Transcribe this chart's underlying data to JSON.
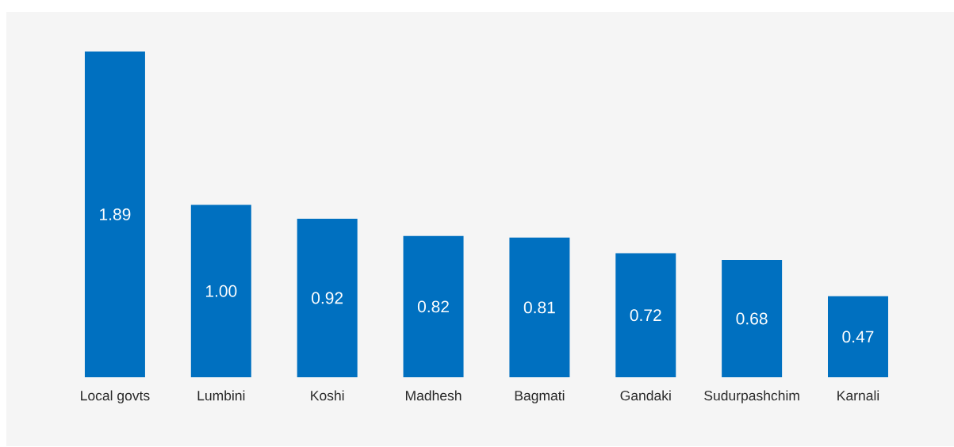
{
  "chart_data": {
    "type": "bar",
    "categories": [
      "Local govts",
      "Lumbini",
      "Koshi",
      "Madhesh",
      "Bagmati",
      "Gandaki",
      "Sudurpashchim",
      "Karnali"
    ],
    "values": [
      1.89,
      1.0,
      0.92,
      0.82,
      0.81,
      0.72,
      0.68,
      0.47
    ],
    "color": "#0070c0",
    "value_labels": [
      "1.89",
      "1.00",
      "0.92",
      "0.82",
      "0.81",
      "0.72",
      "0.68",
      "0.47"
    ]
  }
}
